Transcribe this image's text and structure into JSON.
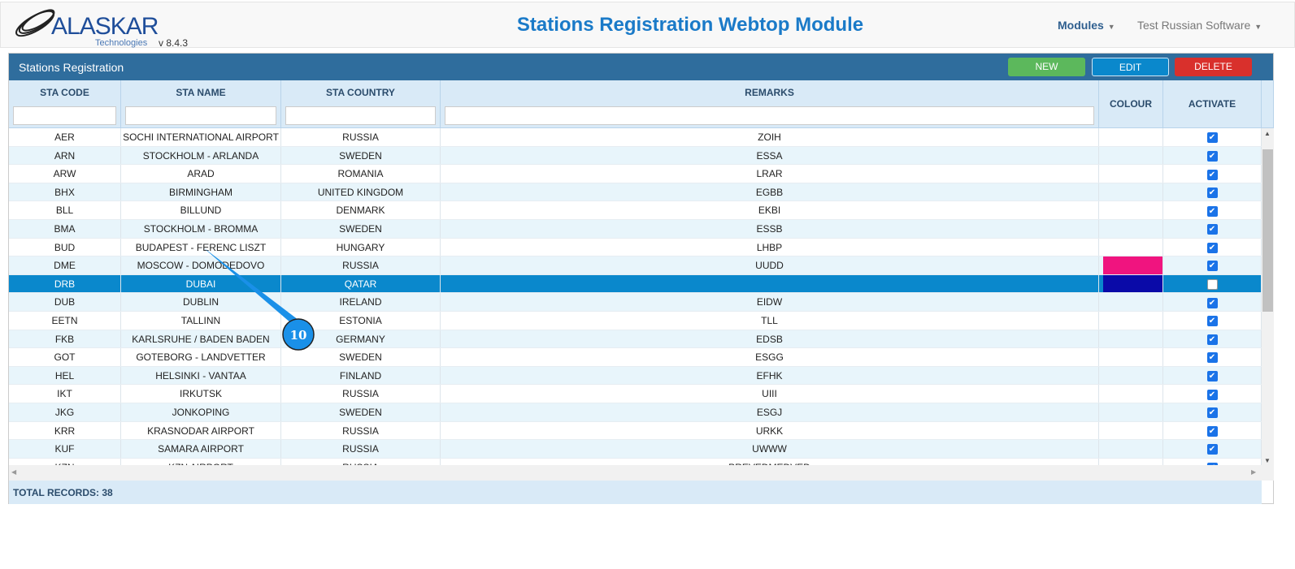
{
  "header": {
    "logo_text": "ALASKAR",
    "logo_sub": "Technologies",
    "version": "v 8.4.3",
    "title": "Stations Registration Webtop Module",
    "modules": "Modules",
    "user": "Test Russian Software"
  },
  "panel": {
    "title": "Stations Registration",
    "new": "NEW",
    "edit": "EDIT",
    "delete": "DELETE"
  },
  "colors": {
    "new": "#5cb85c",
    "edit": "#0a88cc",
    "delete": "#d9302c",
    "selected_row": "#0a88cc"
  },
  "columns": [
    "STA CODE",
    "STA NAME",
    "STA COUNTRY",
    "REMARKS",
    "COLOUR",
    "ACTIVATE"
  ],
  "rows": [
    {
      "code": "AER",
      "name": "SOCHI INTERNATIONAL AIRPORT",
      "country": "RUSSIA",
      "remarks": "ZOIH",
      "colour": "",
      "active": true
    },
    {
      "code": "ARN",
      "name": "STOCKHOLM - ARLANDA",
      "country": "SWEDEN",
      "remarks": "ESSA",
      "colour": "",
      "active": true
    },
    {
      "code": "ARW",
      "name": "ARAD",
      "country": "ROMANIA",
      "remarks": "LRAR",
      "colour": "",
      "active": true
    },
    {
      "code": "BHX",
      "name": "BIRMINGHAM",
      "country": "UNITED KINGDOM",
      "remarks": "EGBB",
      "colour": "",
      "active": true
    },
    {
      "code": "BLL",
      "name": "BILLUND",
      "country": "DENMARK",
      "remarks": "EKBI",
      "colour": "",
      "active": true
    },
    {
      "code": "BMA",
      "name": "STOCKHOLM - BROMMA",
      "country": "SWEDEN",
      "remarks": "ESSB",
      "colour": "",
      "active": true
    },
    {
      "code": "BUD",
      "name": "BUDAPEST - FERENC LISZT",
      "country": "HUNGARY",
      "remarks": "LHBP",
      "colour": "",
      "active": true
    },
    {
      "code": "DME",
      "name": "MOSCOW - DOMODEDOVO",
      "country": "RUSSIA",
      "remarks": "UUDD",
      "colour": "#f0147f",
      "active": true
    },
    {
      "code": "DRB",
      "name": "DUBAI",
      "country": "QATAR",
      "remarks": "",
      "colour": "#0a0aa8",
      "active": false,
      "selected": true
    },
    {
      "code": "DUB",
      "name": "DUBLIN",
      "country": "IRELAND",
      "remarks": "EIDW",
      "colour": "",
      "active": true
    },
    {
      "code": "EETN",
      "name": "TALLINN",
      "country": "ESTONIA",
      "remarks": "TLL",
      "colour": "",
      "active": true
    },
    {
      "code": "FKB",
      "name": "KARLSRUHE / BADEN BADEN",
      "country": "GERMANY",
      "remarks": "EDSB",
      "colour": "",
      "active": true
    },
    {
      "code": "GOT",
      "name": "GOTEBORG - LANDVETTER",
      "country": "SWEDEN",
      "remarks": "ESGG",
      "colour": "",
      "active": true
    },
    {
      "code": "HEL",
      "name": "HELSINKI - VANTAA",
      "country": "FINLAND",
      "remarks": "EFHK",
      "colour": "",
      "active": true
    },
    {
      "code": "IKT",
      "name": "IRKUTSK",
      "country": "RUSSIA",
      "remarks": "UIII",
      "colour": "",
      "active": true
    },
    {
      "code": "JKG",
      "name": "JONKOPING",
      "country": "SWEDEN",
      "remarks": "ESGJ",
      "colour": "",
      "active": true
    },
    {
      "code": "KRR",
      "name": "KRASNODAR AIRPORT",
      "country": "RUSSIA",
      "remarks": "URKK",
      "colour": "",
      "active": true
    },
    {
      "code": "KUF",
      "name": "SAMARA AIRPORT",
      "country": "RUSSIA",
      "remarks": "UWWW",
      "colour": "",
      "active": true
    },
    {
      "code": "KZN",
      "name": "KZN AIRPORT",
      "country": "RUSSIA",
      "remarks": "PREVEDMEDVED",
      "colour": "",
      "active": true
    }
  ],
  "footer": {
    "total": "TOTAL RECORDS: 38"
  },
  "callout": {
    "number": "10"
  }
}
